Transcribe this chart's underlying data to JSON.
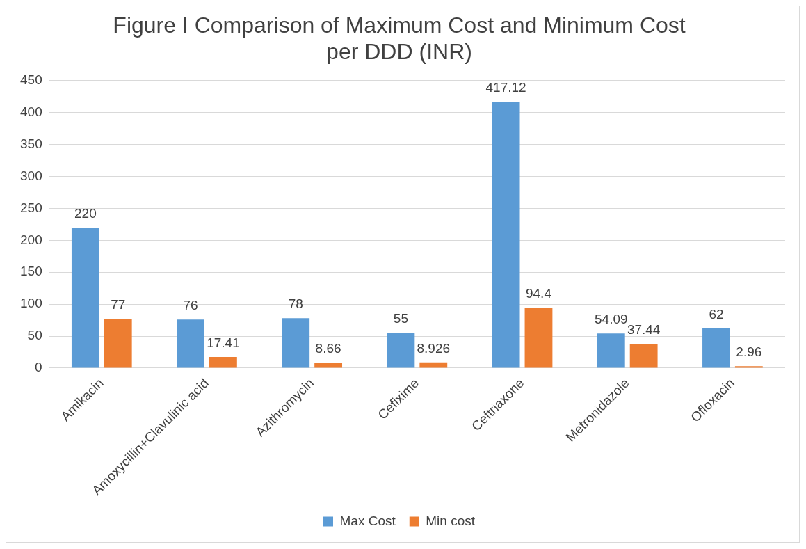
{
  "chart_data": {
    "type": "bar",
    "title": "Figure I Comparison of Maximum Cost and Minimum Cost per DDD (INR)",
    "categories": [
      "Amikacin",
      "Amoxycillin+Clavulinic acid",
      "Azithromycin",
      "Cefixime",
      "Ceftriaxone",
      "Metronidazole",
      "Ofloxacin"
    ],
    "series": [
      {
        "name": "Max Cost",
        "color": "#5b9bd5",
        "values": [
          220,
          76,
          78,
          55,
          417.12,
          54.09,
          62
        ]
      },
      {
        "name": "Min cost",
        "color": "#ed7d31",
        "values": [
          77,
          17.41,
          8.66,
          8.926,
          94.4,
          37.44,
          2.96
        ]
      }
    ],
    "ylim": [
      0,
      450
    ],
    "yticks": [
      0,
      50,
      100,
      150,
      200,
      250,
      300,
      350,
      400,
      450
    ],
    "grid": "y",
    "legend": "bottom",
    "data_labels": true
  }
}
